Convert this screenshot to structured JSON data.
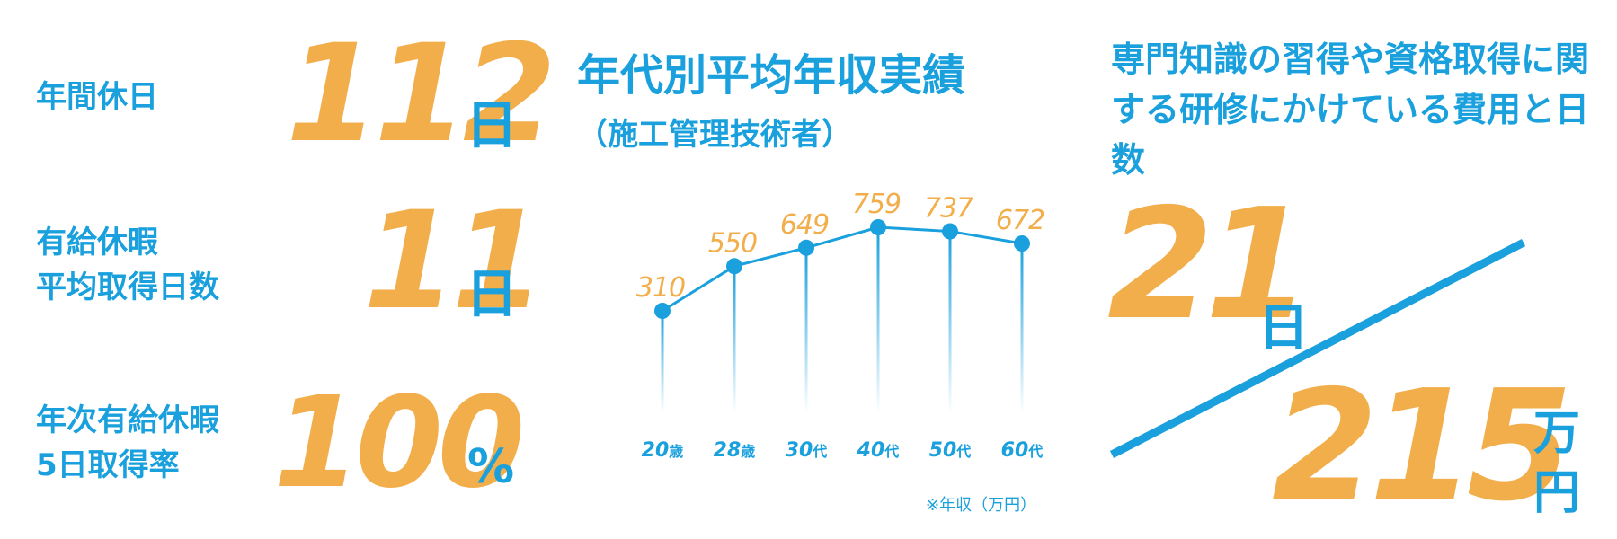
{
  "left_stats": [
    {
      "label_lines": [
        "年間休日"
      ],
      "value": "112",
      "unit": "日"
    },
    {
      "label_lines": [
        "有給休暇",
        "平均取得日数"
      ],
      "value": "11",
      "unit": "日"
    },
    {
      "label_lines": [
        "年次有給休暇",
        "5日取得率"
      ],
      "value": "100",
      "unit": "%"
    }
  ],
  "chart_data": {
    "type": "line",
    "title": "年代別平均年収実績",
    "subtitle": "（施工管理技術者）",
    "categories": [
      "20歳",
      "28歳",
      "30代",
      "40代",
      "50代",
      "60代"
    ],
    "x_numbers": [
      "20",
      "28",
      "30",
      "40",
      "50",
      "60"
    ],
    "x_suffixes": [
      "歳",
      "歳",
      "代",
      "代",
      "代",
      "代"
    ],
    "series": [
      {
        "values": [
          310,
          550,
          649,
          759,
          737,
          672
        ]
      }
    ],
    "note": "※年収（万円）",
    "ylim": [
      0,
      900
    ],
    "colors": {
      "line": "#1aa0dc",
      "labels": "#f2ae4b"
    }
  },
  "right_panel": {
    "title": "専門知識の習得や資格取得に関する研修にかけている費用と日数",
    "days_value": "21",
    "days_unit": "日",
    "cost_value": "215",
    "cost_unit_line1": "万",
    "cost_unit_line2": "円"
  }
}
